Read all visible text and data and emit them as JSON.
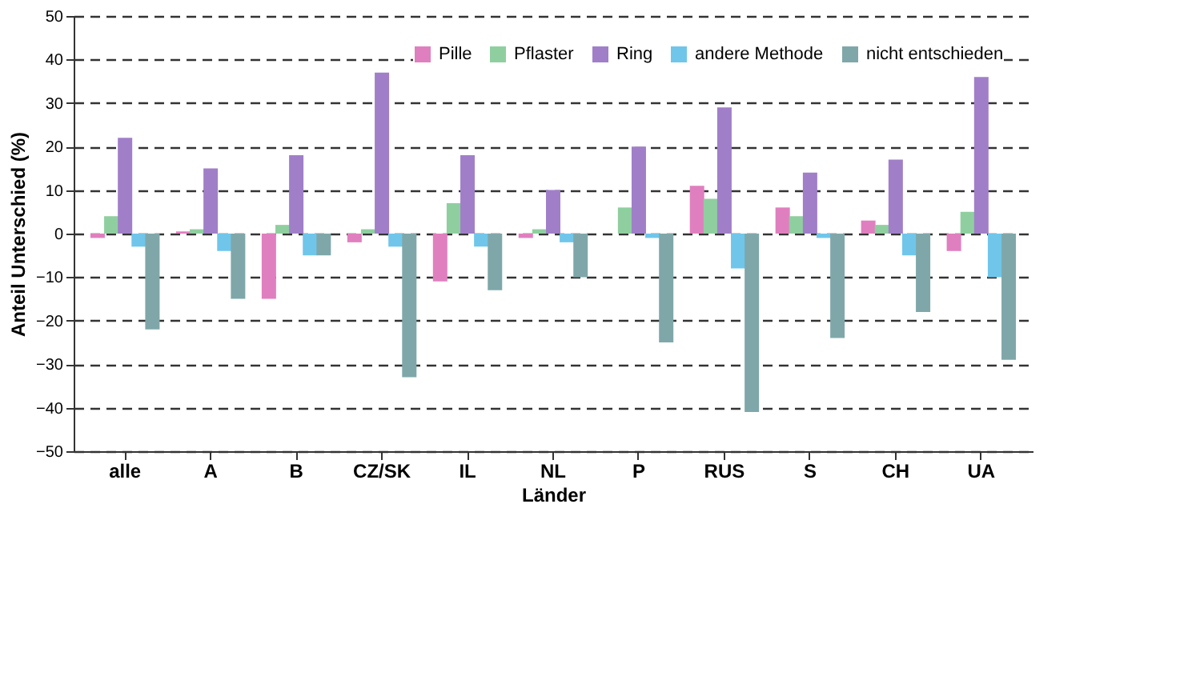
{
  "chart_data": {
    "type": "bar",
    "xlabel": "Länder",
    "ylabel": "Anteil Unterschied (%)",
    "categories": [
      "alle",
      "A",
      "B",
      "CZ/SK",
      "IL",
      "NL",
      "P",
      "RUS",
      "S",
      "CH",
      "UA"
    ],
    "series": [
      {
        "name": "Pille",
        "color": "#e07fbf",
        "values": [
          -1,
          0.5,
          -15,
          -2,
          -11,
          -1,
          0,
          11,
          6,
          3,
          -4
        ]
      },
      {
        "name": "Pflaster",
        "color": "#8fcf9f",
        "values": [
          4,
          1,
          2,
          1,
          7,
          1,
          6,
          8,
          4,
          2,
          5
        ]
      },
      {
        "name": "Ring",
        "color": "#a07fc8",
        "values": [
          22,
          15,
          18,
          37,
          18,
          10,
          20,
          29,
          14,
          17,
          36
        ]
      },
      {
        "name": "andere Methode",
        "color": "#6fc6ea",
        "values": [
          -3,
          -4,
          -5,
          -3,
          -3,
          -2,
          -1,
          -8,
          -1,
          -5,
          -10
        ]
      },
      {
        "name": "nicht entschieden",
        "color": "#7fa7a9",
        "values": [
          -22,
          -15,
          -5,
          -33,
          -13,
          -10,
          -25,
          -41,
          -24,
          -18,
          -29
        ]
      }
    ],
    "ylim": [
      -50,
      50
    ],
    "yticks": [
      -50,
      -40,
      -30,
      -20,
      -10,
      0,
      10,
      20,
      30,
      40,
      50
    ],
    "grid": "y",
    "line_style": "dashed",
    "legend": "top right"
  }
}
